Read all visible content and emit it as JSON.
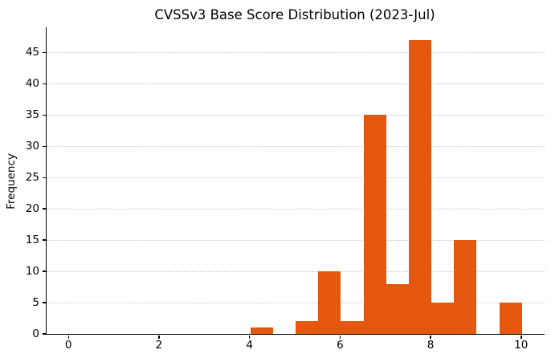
{
  "chart_data": {
    "type": "bar",
    "title": "CVSSv3 Base Score Distribution (2023-Jul)",
    "xlabel": "",
    "ylabel": "Frequency",
    "bin_width": 0.5,
    "bins": [
      {
        "x0": 4.0,
        "x1": 4.5,
        "count": 1
      },
      {
        "x0": 4.5,
        "x1": 5.0,
        "count": 0
      },
      {
        "x0": 5.0,
        "x1": 5.5,
        "count": 2
      },
      {
        "x0": 5.5,
        "x1": 6.0,
        "count": 10
      },
      {
        "x0": 6.0,
        "x1": 6.5,
        "count": 2
      },
      {
        "x0": 6.5,
        "x1": 7.0,
        "count": 35
      },
      {
        "x0": 7.0,
        "x1": 7.5,
        "count": 8
      },
      {
        "x0": 7.5,
        "x1": 8.0,
        "count": 47
      },
      {
        "x0": 8.0,
        "x1": 8.5,
        "count": 5
      },
      {
        "x0": 8.5,
        "x1": 9.0,
        "count": 15
      },
      {
        "x0": 9.0,
        "x1": 9.5,
        "count": 0
      },
      {
        "x0": 9.5,
        "x1": 10.0,
        "count": 5
      }
    ],
    "xticks": [
      0,
      2,
      4,
      6,
      8,
      10
    ],
    "yticks": [
      0,
      5,
      10,
      15,
      20,
      25,
      30,
      35,
      40,
      45
    ],
    "xlim": [
      -0.5,
      10.5
    ],
    "ylim": [
      0,
      49
    ],
    "grid": {
      "axis": "y",
      "style": "dotted"
    },
    "legend_position": "none",
    "bar_color": "#e4570e",
    "background_color": "#ffffff",
    "gridline_color": "#c8c8c8",
    "axis_color": "#000000"
  }
}
